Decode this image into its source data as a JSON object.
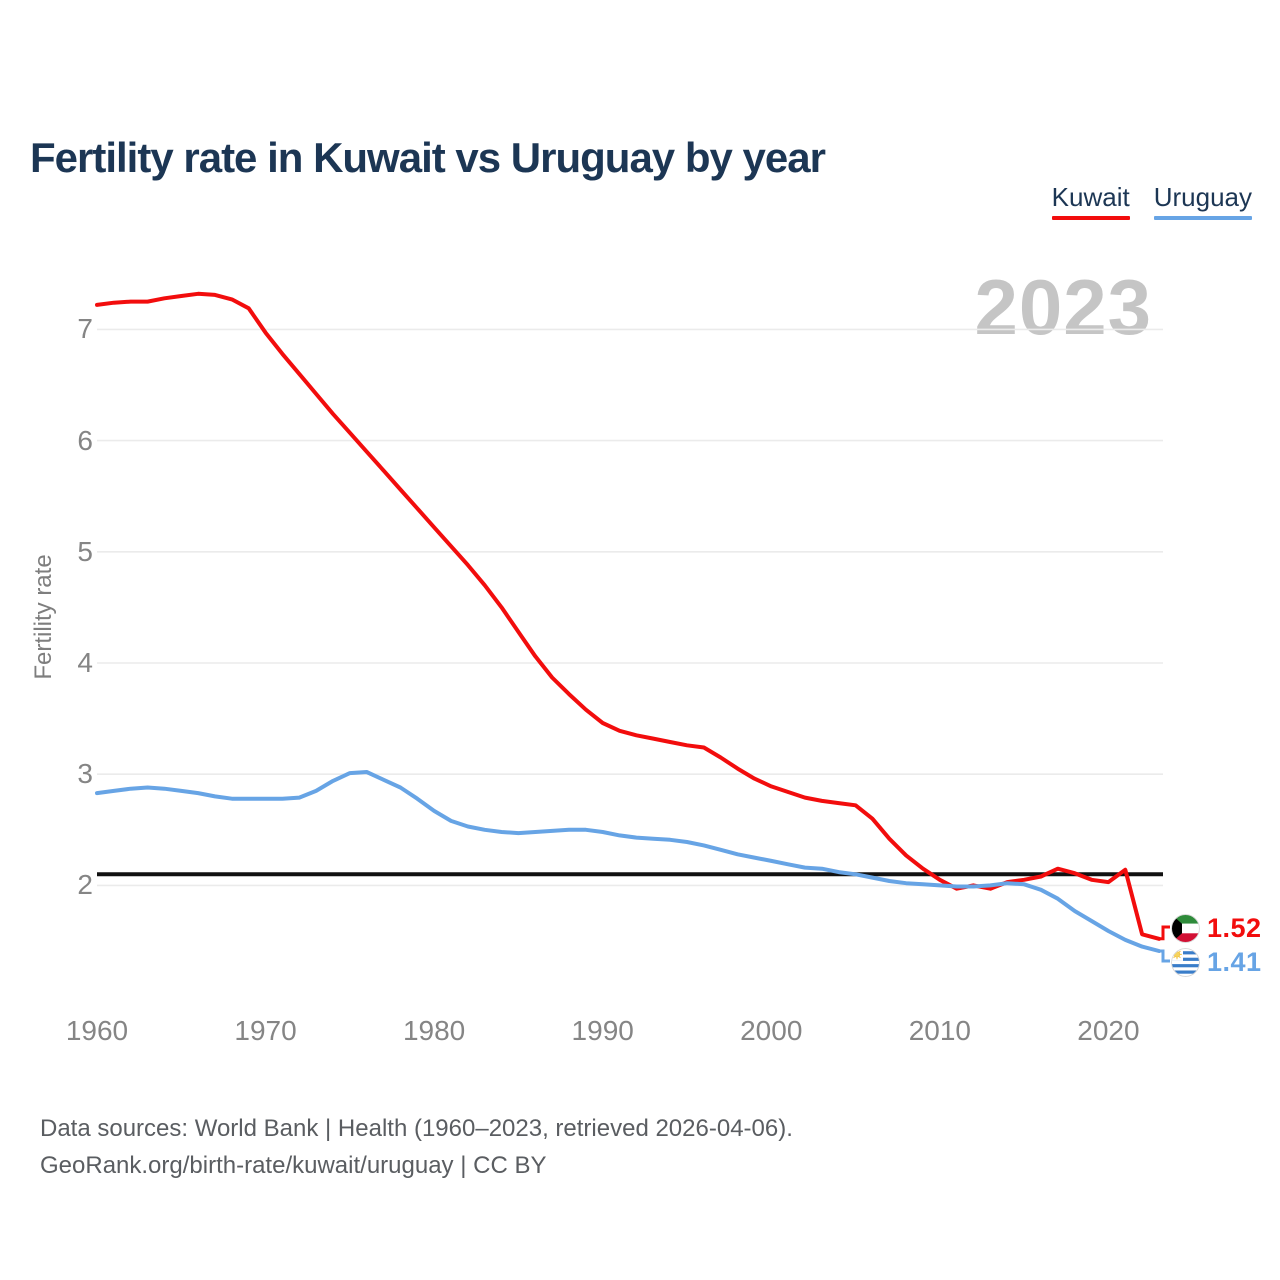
{
  "title": "Fertility rate in Kuwait vs Uruguay by year",
  "legend": {
    "items": [
      {
        "label": "Kuwait",
        "color": "#f20d0d"
      },
      {
        "label": "Uruguay",
        "color": "#67a4e5"
      }
    ]
  },
  "watermark": "2023",
  "y_axis_title": "Fertility rate",
  "end_labels": {
    "kuwait": {
      "value": "1.52",
      "flag": "kuwait-flag-icon"
    },
    "uruguay": {
      "value": "1.41",
      "flag": "uruguay-flag-icon"
    }
  },
  "sources": {
    "line1": "Data sources: World Bank | Health (1960–2023, retrieved 2026-04-06).",
    "line2": "GeoRank.org/birth-rate/kuwait/uruguay | CC BY"
  },
  "colors": {
    "kuwait_red": "#f20d0d",
    "uruguay_blue": "#67a4e5",
    "title_navy": "#1c3654",
    "gridline": "#ebebeb",
    "axis_text": "#858585",
    "watermark_gray": "#c5c5c5",
    "reference_line_black": "#111111",
    "source_text": "#5a5d61"
  },
  "chart_data": {
    "type": "line",
    "title": "Fertility rate in Kuwait vs Uruguay by year",
    "xlabel": "",
    "ylabel": "Fertility rate",
    "grid": true,
    "legend_position": "top-right",
    "xticks": [
      1960,
      1970,
      1980,
      1990,
      2000,
      2010,
      2020
    ],
    "yticks": [
      2,
      3,
      4,
      5,
      6,
      7
    ],
    "ylim": [
      1.2,
      7.6
    ],
    "xlim": [
      1960,
      2023
    ],
    "reference_line": 2.1,
    "x": [
      1960,
      1961,
      1962,
      1963,
      1964,
      1965,
      1966,
      1967,
      1968,
      1969,
      1970,
      1971,
      1972,
      1973,
      1974,
      1975,
      1976,
      1977,
      1978,
      1979,
      1980,
      1981,
      1982,
      1983,
      1984,
      1985,
      1986,
      1987,
      1988,
      1989,
      1990,
      1991,
      1992,
      1993,
      1994,
      1995,
      1996,
      1997,
      1998,
      1999,
      2000,
      2001,
      2002,
      2003,
      2004,
      2005,
      2006,
      2007,
      2008,
      2009,
      2010,
      2011,
      2012,
      2013,
      2014,
      2015,
      2016,
      2017,
      2018,
      2019,
      2020,
      2021,
      2022,
      2023
    ],
    "series": [
      {
        "name": "Kuwait",
        "color": "#f20d0d",
        "end_value": 1.52,
        "values": [
          7.22,
          7.24,
          7.25,
          7.25,
          7.28,
          7.3,
          7.32,
          7.31,
          7.27,
          7.19,
          6.97,
          6.78,
          6.6,
          6.42,
          6.24,
          6.07,
          5.9,
          5.73,
          5.56,
          5.39,
          5.22,
          5.05,
          4.88,
          4.7,
          4.5,
          4.28,
          4.06,
          3.87,
          3.72,
          3.58,
          3.46,
          3.39,
          3.35,
          3.32,
          3.29,
          3.26,
          3.24,
          3.15,
          3.05,
          2.96,
          2.89,
          2.84,
          2.79,
          2.76,
          2.74,
          2.72,
          2.6,
          2.42,
          2.27,
          2.15,
          2.05,
          1.97,
          2.0,
          1.97,
          2.03,
          2.05,
          2.08,
          2.15,
          2.11,
          2.05,
          2.03,
          2.14,
          1.56,
          1.52
        ]
      },
      {
        "name": "Uruguay",
        "color": "#67a4e5",
        "end_value": 1.41,
        "values": [
          2.83,
          2.85,
          2.87,
          2.88,
          2.87,
          2.85,
          2.83,
          2.8,
          2.78,
          2.78,
          2.78,
          2.78,
          2.79,
          2.85,
          2.94,
          3.01,
          3.02,
          2.95,
          2.88,
          2.78,
          2.67,
          2.58,
          2.53,
          2.5,
          2.48,
          2.47,
          2.48,
          2.49,
          2.5,
          2.5,
          2.48,
          2.45,
          2.43,
          2.42,
          2.41,
          2.39,
          2.36,
          2.32,
          2.28,
          2.25,
          2.22,
          2.19,
          2.16,
          2.15,
          2.12,
          2.1,
          2.07,
          2.04,
          2.02,
          2.01,
          2.0,
          1.99,
          1.99,
          2.0,
          2.02,
          2.01,
          1.96,
          1.88,
          1.77,
          1.68,
          1.59,
          1.51,
          1.45,
          1.41
        ]
      }
    ]
  }
}
